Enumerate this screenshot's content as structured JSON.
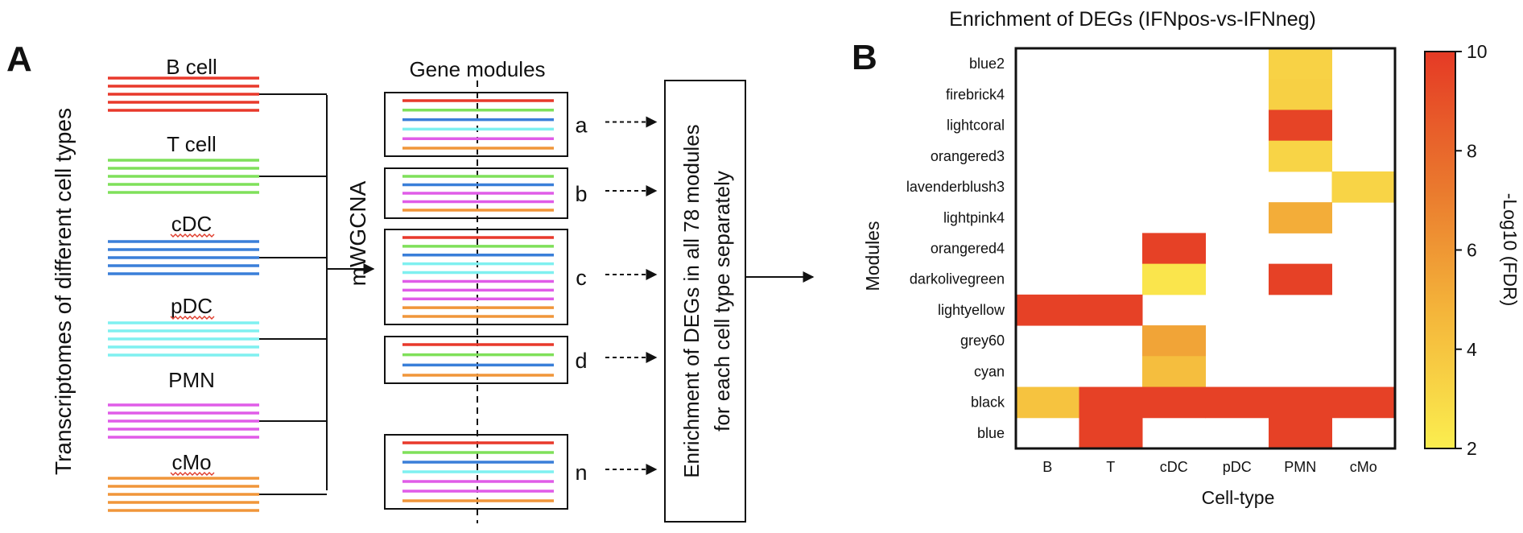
{
  "panel_a": {
    "letter": "A",
    "yaxis_label": "Transcriptomes of different cell types",
    "method_label": "mWGCNA",
    "modules_header": "Gene modules",
    "cell_types": [
      {
        "name": "B cell",
        "color": "#e8392b"
      },
      {
        "name": "T cell",
        "color": "#7fe05a"
      },
      {
        "name": "cDC",
        "color": "#3a7fd9"
      },
      {
        "name": "pDC",
        "color": "#7ff0f0"
      },
      {
        "name": "PMN",
        "color": "#e05ce8"
      },
      {
        "name": "cMo",
        "color": "#f0963a"
      }
    ],
    "modules": [
      {
        "label": "a",
        "line_colors": [
          "#e8392b",
          "#7fe05a",
          "#3a7fd9",
          "#7ff0f0",
          "#e05ce8",
          "#f0963a"
        ]
      },
      {
        "label": "b",
        "line_colors": [
          "#7fe05a",
          "#3a7fd9",
          "#e05ce8",
          "#e05ce8",
          "#f0963a"
        ]
      },
      {
        "label": "c",
        "line_colors": [
          "#e8392b",
          "#7fe05a",
          "#3a7fd9",
          "#7ff0f0",
          "#7ff0f0",
          "#e05ce8",
          "#e05ce8",
          "#e05ce8",
          "#f0963a",
          "#f0963a"
        ]
      },
      {
        "label": "d",
        "line_colors": [
          "#e8392b",
          "#7fe05a",
          "#3a7fd9",
          "#f0963a"
        ]
      },
      {
        "label": "n",
        "line_colors": [
          "#e8392b",
          "#7fe05a",
          "#3a7fd9",
          "#7ff0f0",
          "#e05ce8",
          "#e05ce8",
          "#f0963a"
        ]
      }
    ],
    "enrichment_box_line1": "Enrichment of DEGs in all 78 modules",
    "enrichment_box_line2": "for  each cell type separately"
  },
  "panel_b": {
    "letter": "B"
  },
  "chart_data": {
    "type": "heatmap",
    "title": "Enrichment of DEGs (IFNpos-vs-IFNneg)",
    "xlabel": "Cell-type",
    "ylabel": "Modules",
    "colorbar_label": "-Log10 (FDR)",
    "colorbar_range": [
      2,
      10
    ],
    "colorbar_ticks": [
      "2",
      "4",
      "6",
      "8",
      "10"
    ],
    "colormap": [
      "#fbee4f",
      "#f4b43a",
      "#ea7a2e",
      "#e53a25"
    ],
    "x_categories": [
      "B",
      "T",
      "cDC",
      "pDC",
      "PMN",
      "cMo"
    ],
    "y_categories": [
      "blue2",
      "firebrick4",
      "lightcoral",
      "orangered3",
      "lavenderblush3",
      "lightpink4",
      "orangered4",
      "darkolivegreen",
      "lightyellow",
      "grey60",
      "cyan",
      "black",
      "blue"
    ],
    "values": [
      [
        null,
        null,
        null,
        null,
        3.3,
        null
      ],
      [
        null,
        null,
        null,
        null,
        3.4,
        null
      ],
      [
        null,
        null,
        null,
        null,
        9.6,
        null
      ],
      [
        null,
        null,
        null,
        null,
        3.2,
        null
      ],
      [
        null,
        null,
        null,
        null,
        null,
        3.2
      ],
      [
        null,
        null,
        null,
        null,
        5.0,
        null
      ],
      [
        null,
        null,
        9.7,
        null,
        null,
        null
      ],
      [
        null,
        null,
        2.4,
        null,
        9.7,
        null
      ],
      [
        9.7,
        9.7,
        null,
        null,
        null,
        null
      ],
      [
        null,
        null,
        5.4,
        null,
        null,
        null
      ],
      [
        null,
        null,
        4.2,
        null,
        null,
        null
      ],
      [
        4.0,
        9.7,
        9.7,
        9.7,
        9.7,
        9.7
      ],
      [
        null,
        9.7,
        null,
        null,
        9.7,
        null
      ]
    ]
  }
}
